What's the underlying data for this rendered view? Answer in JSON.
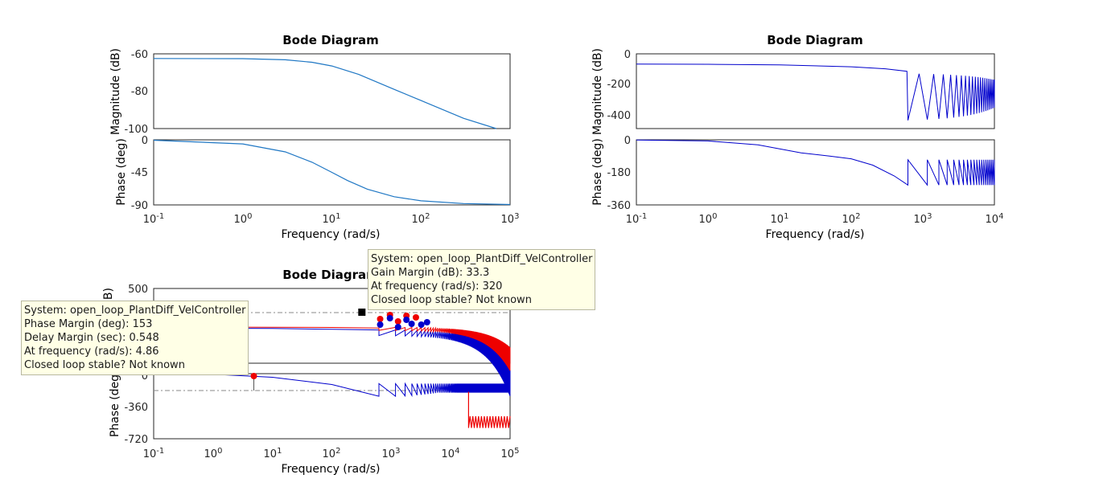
{
  "chart_data": [
    {
      "type": "line",
      "title": "Bode Diagram",
      "xlabel": "Frequency  (rad/s)",
      "xscale": "log",
      "xlim": [
        0.1,
        1000
      ],
      "xticks": [
        "-1",
        "0",
        "1",
        "2",
        "3"
      ],
      "magnitude": {
        "ylabel": "Magnitude (dB)",
        "ylim": [
          -100,
          -60
        ],
        "yticks": [
          "-60",
          "-80",
          "-100"
        ],
        "series": [
          {
            "color": "#1f77c4",
            "x": [
              0.1,
              1,
              3,
              6,
              10,
              20,
              50,
              100,
              300,
              700
            ],
            "y": [
              -62.5,
              -62.6,
              -63.2,
              -64.5,
              -66.5,
              -71.0,
              -79.0,
              -85.0,
              -94.5,
              -100
            ]
          }
        ]
      },
      "phase": {
        "ylabel": "Phase (deg)",
        "ylim": [
          -90,
          0
        ],
        "yticks": [
          "0",
          "-45",
          "-90"
        ],
        "series": [
          {
            "color": "#1f77c4",
            "x": [
              0.1,
              1,
              3,
              6,
              10,
              15,
              25,
              50,
              100,
              300,
              1000
            ],
            "y": [
              -0.6,
              -5.7,
              -16.7,
              -31,
              -45,
              -56.3,
              -68.2,
              -78.7,
              -84.3,
              -88.1,
              -89.4
            ]
          }
        ]
      }
    },
    {
      "type": "line",
      "title": "Bode Diagram",
      "xlabel": "Frequency  (rad/s)",
      "xscale": "log",
      "xlim": [
        0.1,
        10000
      ],
      "xticks": [
        "-1",
        "0",
        "1",
        "2",
        "3",
        "4"
      ],
      "magnitude": {
        "ylabel": "Magnitude (dB)",
        "ylim": [
          -450,
          0
        ],
        "yticks": [
          "0",
          "-200",
          "-400"
        ],
        "series": [
          {
            "color": "#0000cc",
            "x": [
              0.1,
              1,
              10,
              100,
              300,
              620,
              640,
              700,
              1000,
              10000
            ],
            "y": [
              -65,
              -66,
              -70,
              -80,
              -90,
              -110,
              -400,
              -125,
              -130,
              -155
            ]
          }
        ]
      },
      "phase": {
        "ylabel": "Phase (deg)",
        "ylim": [
          -360,
          0
        ],
        "yticks": [
          "0",
          "-180",
          "-360"
        ],
        "series": [
          {
            "color": "#0000cc",
            "x": [
              0.1,
              1,
              5,
              20,
              50,
              100,
              200,
              400,
              620,
              640,
              10000
            ],
            "y": [
              -1,
              -5,
              -25,
              -70,
              -90,
              -105,
              -140,
              -200,
              -250,
              -110,
              -200
            ]
          }
        ]
      }
    },
    {
      "type": "line",
      "title": "Bode Diagram",
      "xlabel": "Frequency  (rad/s)",
      "xscale": "log",
      "xlim": [
        0.1,
        100000
      ],
      "xticks": [
        "-1",
        "0",
        "1",
        "2",
        "3",
        "4",
        "5"
      ],
      "magnitude": {
        "ylabel": "dB)",
        "ylim": [
          -500,
          500
        ],
        "yticks": [
          "500"
        ],
        "series": [
          {
            "color": "#0000cc",
            "x": [
              0.1,
              100,
              620,
              20000,
              100000
            ],
            "y": [
              -50,
              -60,
              -100,
              -200,
              -250
            ]
          },
          {
            "color": "#ee0000",
            "x": [
              0.1,
              100,
              620,
              20000,
              100000
            ],
            "y": [
              -20,
              -30,
              -60,
              -120,
              -130
            ]
          }
        ]
      },
      "phase": {
        "ylabel": "Phase (deg",
        "ylim": [
          -720,
          0
        ],
        "yticks": [
          "0",
          "-360",
          "-720"
        ],
        "series": [
          {
            "color": "#0000cc",
            "x": [
              0.1,
              1,
              10,
              100,
              620,
              100000
            ],
            "y": [
              -1,
              -6,
              -40,
              -120,
              -250,
              -180
            ]
          },
          {
            "color": "#ee0000",
            "x": [
              20000,
              100000
            ],
            "y": [
              -540,
              -540
            ]
          }
        ]
      },
      "margin_markers": {
        "gain_margin_frequency": 320,
        "phase_margin_frequency": 4.86
      }
    }
  ],
  "tooltips": {
    "gain": {
      "system": "System: open_loop_PlantDiff_VelController",
      "margin": "Gain Margin (dB): 33.3",
      "frequency": "At frequency (rad/s): 320",
      "stable": "Closed loop stable? Not known"
    },
    "phase": {
      "system": "System: open_loop_PlantDiff_VelController",
      "margin": "Phase Margin (deg): 153",
      "delay": "Delay Margin (sec): 0.548",
      "frequency": "At frequency (rad/s): 4.86",
      "stable": "Closed loop stable? Not known"
    }
  }
}
